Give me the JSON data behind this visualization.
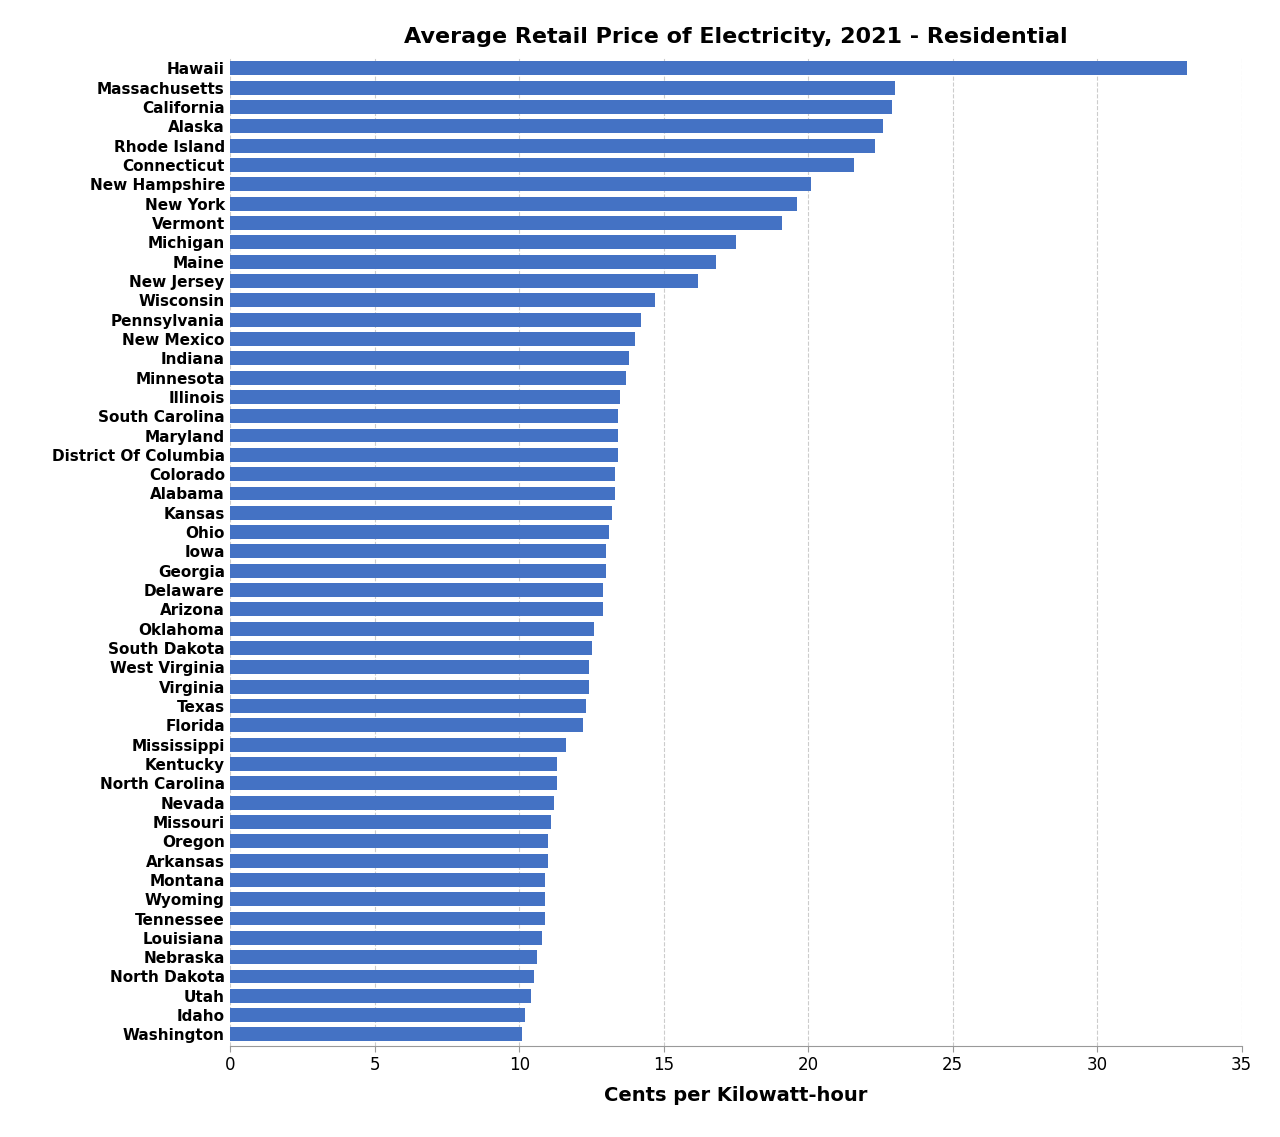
{
  "title": "Average Retail Price of Electricity, 2021 - Residential",
  "xlabel": "Cents per Kilowatt-hour",
  "states": [
    "Hawaii",
    "Massachusetts",
    "California",
    "Alaska",
    "Rhode Island",
    "Connecticut",
    "New Hampshire",
    "New York",
    "Vermont",
    "Michigan",
    "Maine",
    "New Jersey",
    "Wisconsin",
    "Pennsylvania",
    "New Mexico",
    "Indiana",
    "Minnesota",
    "Illinois",
    "South Carolina",
    "Maryland",
    "District Of Columbia",
    "Colorado",
    "Alabama",
    "Kansas",
    "Ohio",
    "Iowa",
    "Georgia",
    "Delaware",
    "Arizona",
    "Oklahoma",
    "South Dakota",
    "West Virginia",
    "Virginia",
    "Texas",
    "Florida",
    "Mississippi",
    "Kentucky",
    "North Carolina",
    "Nevada",
    "Missouri",
    "Oregon",
    "Arkansas",
    "Montana",
    "Wyoming",
    "Tennessee",
    "Louisiana",
    "Nebraska",
    "North Dakota",
    "Utah",
    "Idaho",
    "Washington"
  ],
  "values": [
    33.1,
    23.0,
    22.9,
    22.6,
    22.3,
    21.6,
    20.1,
    19.6,
    19.1,
    17.5,
    16.8,
    16.2,
    14.7,
    14.2,
    14.0,
    13.8,
    13.7,
    13.5,
    13.4,
    13.4,
    13.4,
    13.3,
    13.3,
    13.2,
    13.1,
    13.0,
    13.0,
    12.9,
    12.9,
    12.6,
    12.5,
    12.4,
    12.4,
    12.3,
    12.2,
    11.6,
    11.3,
    11.3,
    11.2,
    11.1,
    11.0,
    11.0,
    10.9,
    10.9,
    10.9,
    10.8,
    10.6,
    10.5,
    10.4,
    10.2,
    10.1
  ],
  "bar_color": "#4472C4",
  "background_color": "#FFFFFF",
  "xlim": [
    0,
    35
  ],
  "xticks": [
    0,
    5,
    10,
    15,
    20,
    25,
    30,
    35
  ],
  "title_fontsize": 16,
  "label_fontsize": 11,
  "tick_fontsize": 12,
  "xlabel_fontsize": 14,
  "bar_height": 0.72
}
